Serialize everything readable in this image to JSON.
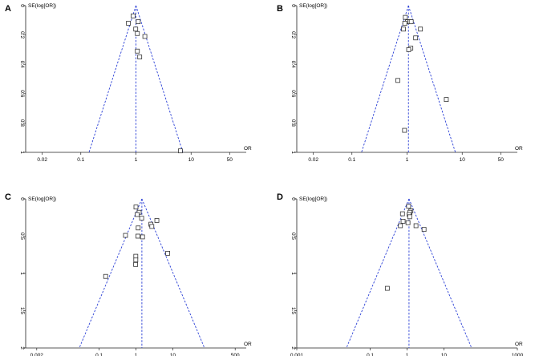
{
  "figure": {
    "panels": [
      "A",
      "B",
      "C",
      "D"
    ]
  },
  "chart_data": [
    {
      "panel_label": "A",
      "type": "scatter",
      "subtype": "funnel-plot",
      "xlabel": "OR",
      "ylabel": "SE(log[OR])",
      "x_scale": "log",
      "y_reversed": true,
      "xlim": [
        0.01,
        100
      ],
      "ylim": [
        0,
        1
      ],
      "x_ticks": [
        0.02,
        0.1,
        1,
        10,
        50
      ],
      "x_tick_labels": [
        "0.02",
        "0.1",
        "1",
        "10",
        "50"
      ],
      "y_ticks": [
        0,
        0.2,
        0.4,
        0.6,
        0.8,
        1
      ],
      "y_tick_labels": [
        "0",
        "0.2",
        "0.4",
        "0.6",
        "0.8",
        "1"
      ],
      "pooled_or": 1.0,
      "funnel_color": "#2a3fd6",
      "marker_color": "#333333",
      "points": [
        {
          "or": 0.89,
          "se": 0.07
        },
        {
          "or": 0.73,
          "se": 0.12
        },
        {
          "or": 1.1,
          "se": 0.11
        },
        {
          "or": 0.99,
          "se": 0.16
        },
        {
          "or": 1.06,
          "se": 0.19
        },
        {
          "or": 1.45,
          "se": 0.21
        },
        {
          "or": 1.06,
          "se": 0.31
        },
        {
          "or": 1.17,
          "se": 0.35
        },
        {
          "or": 6.4,
          "se": 0.99
        }
      ]
    },
    {
      "panel_label": "B",
      "type": "scatter",
      "subtype": "funnel-plot",
      "xlabel": "OR",
      "ylabel": "SE(log[OR])",
      "x_scale": "log",
      "y_reversed": true,
      "xlim": [
        0.01,
        100
      ],
      "ylim": [
        0,
        1
      ],
      "x_ticks": [
        0.02,
        0.1,
        1,
        10,
        50
      ],
      "x_tick_labels": [
        "0.02",
        "0.1",
        "1",
        "10",
        "50"
      ],
      "y_ticks": [
        0,
        0.2,
        0.4,
        0.6,
        0.8,
        1
      ],
      "y_tick_labels": [
        "0",
        "0.2",
        "0.4",
        "0.6",
        "0.8",
        "1"
      ],
      "pooled_or": 1.06,
      "funnel_color": "#2a3fd6",
      "marker_color": "#333333",
      "points": [
        {
          "or": 0.93,
          "se": 0.08
        },
        {
          "or": 1.02,
          "se": 0.11
        },
        {
          "or": 1.12,
          "se": 0.11
        },
        {
          "or": 1.19,
          "se": 0.11
        },
        {
          "or": 0.91,
          "se": 0.12
        },
        {
          "or": 0.86,
          "se": 0.16
        },
        {
          "or": 1.75,
          "se": 0.16
        },
        {
          "or": 1.43,
          "se": 0.22
        },
        {
          "or": 1.17,
          "se": 0.29
        },
        {
          "or": 1.07,
          "se": 0.3
        },
        {
          "or": 0.68,
          "se": 0.51
        },
        {
          "or": 5.15,
          "se": 0.64
        },
        {
          "or": 0.9,
          "se": 0.85
        }
      ]
    },
    {
      "panel_label": "C",
      "type": "scatter",
      "subtype": "funnel-plot",
      "xlabel": "OR",
      "ylabel": "SE(log[OR])",
      "x_scale": "log",
      "y_reversed": true,
      "xlim": [
        0.001,
        1000
      ],
      "ylim": [
        0,
        2
      ],
      "x_ticks": [
        0.002,
        0.1,
        1,
        10,
        500
      ],
      "x_tick_labels": [
        "0.002",
        "0.1",
        "1",
        "10",
        "500"
      ],
      "y_ticks": [
        0,
        0.5,
        1,
        1.5,
        2
      ],
      "y_tick_labels": [
        "0",
        "0.5",
        "1",
        "1.5",
        "2"
      ],
      "pooled_or": 1.45,
      "funnel_color": "#2a3fd6",
      "marker_color": "#333333",
      "points": [
        {
          "or": 1.0,
          "se": 0.11
        },
        {
          "or": 1.22,
          "se": 0.18
        },
        {
          "or": 1.08,
          "se": 0.21
        },
        {
          "or": 1.43,
          "se": 0.26
        },
        {
          "or": 3.7,
          "se": 0.29
        },
        {
          "or": 2.55,
          "se": 0.34
        },
        {
          "or": 2.7,
          "se": 0.37
        },
        {
          "or": 1.15,
          "se": 0.39
        },
        {
          "or": 0.52,
          "se": 0.49
        },
        {
          "or": 1.13,
          "se": 0.5
        },
        {
          "or": 1.51,
          "se": 0.51
        },
        {
          "or": 7.3,
          "se": 0.73
        },
        {
          "or": 0.99,
          "se": 0.77
        },
        {
          "or": 0.99,
          "se": 0.82
        },
        {
          "or": 0.98,
          "se": 0.88
        },
        {
          "or": 0.15,
          "se": 1.04
        }
      ]
    },
    {
      "panel_label": "D",
      "type": "scatter",
      "subtype": "funnel-plot",
      "xlabel": "OR",
      "ylabel": "SE(log[OR])",
      "x_scale": "log",
      "y_reversed": true,
      "xlim": [
        0.001,
        1000
      ],
      "ylim": [
        0,
        2
      ],
      "x_ticks": [
        0.001,
        0.1,
        1,
        10,
        1000
      ],
      "x_tick_labels": [
        "0.001",
        "0.1",
        "1",
        "10",
        "1000"
      ],
      "y_ticks": [
        0,
        0.5,
        1,
        1.5,
        2
      ],
      "y_tick_labels": [
        "0",
        "0.5",
        "1",
        "1.5",
        "2"
      ],
      "pooled_or": 1.13,
      "funnel_color": "#2a3fd6",
      "marker_color": "#333333",
      "points": [
        {
          "or": 1.1,
          "se": 0.1
        },
        {
          "or": 1.27,
          "se": 0.16
        },
        {
          "or": 1.2,
          "se": 0.18
        },
        {
          "or": 0.75,
          "se": 0.2
        },
        {
          "or": 1.14,
          "se": 0.21
        },
        {
          "or": 1.18,
          "se": 0.24
        },
        {
          "or": 0.78,
          "se": 0.3
        },
        {
          "or": 1.06,
          "se": 0.32
        },
        {
          "or": 0.66,
          "se": 0.36
        },
        {
          "or": 1.75,
          "se": 0.36
        },
        {
          "or": 2.9,
          "se": 0.41
        },
        {
          "or": 0.29,
          "se": 1.2
        }
      ]
    }
  ]
}
